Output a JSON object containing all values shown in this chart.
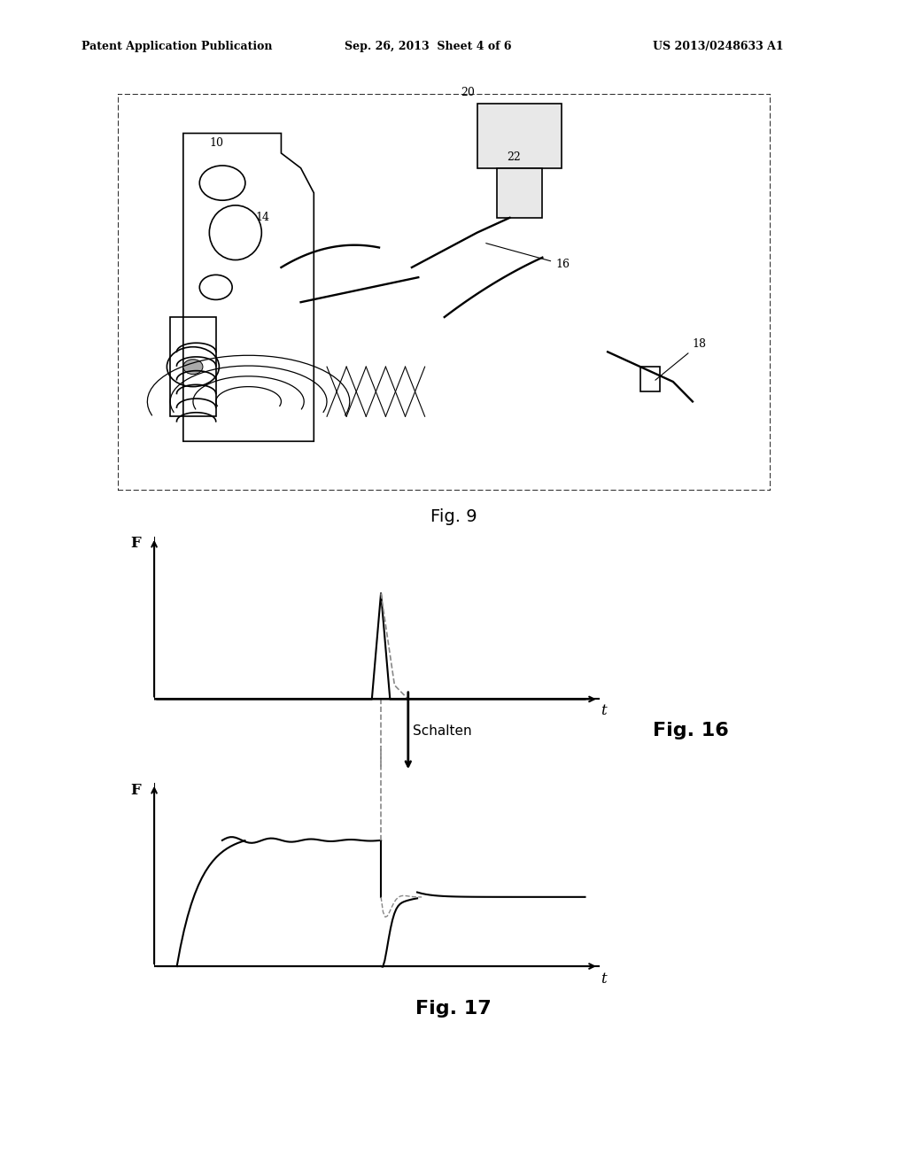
{
  "background_color": "#ffffff",
  "header_left": "Patent Application Publication",
  "header_center": "Sep. 26, 2013  Sheet 4 of 6",
  "header_right": "US 2013/0248633 A1",
  "fig9_label": "Fig. 9",
  "fig16_label": "Fig. 16",
  "fig17_label": "Fig. 17",
  "schalten_label": "Schalten",
  "f_label": "F",
  "t_label": "t",
  "line_color": "#000000",
  "dashed_color": "#888888"
}
